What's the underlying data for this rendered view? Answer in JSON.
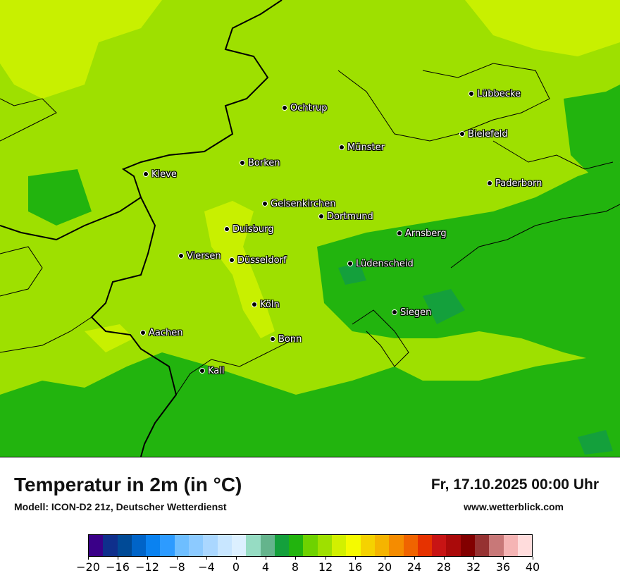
{
  "title": "Temperatur in 2m (in °C)",
  "subtitle": "Modell: ICON-D2 21z, Deutscher Wetterdienst",
  "datetime": "Fr, 17.10.2025 00:00 Uhr",
  "website": "www.wetterblick.com",
  "map_colors": {
    "band_10_12": "#9ee000",
    "band_12_14": "#c8f000",
    "band_8_10": "#22b40e",
    "band_6_8": "#14a03c",
    "border": "#000000"
  },
  "cities": [
    {
      "name": "Lübbecke"
    },
    {
      "name": "Ochtrup"
    },
    {
      "name": "Bielefeld"
    },
    {
      "name": "Münster"
    },
    {
      "name": "Borken"
    },
    {
      "name": "Kleve"
    },
    {
      "name": "Paderborn"
    },
    {
      "name": "Gelsenkirchen"
    },
    {
      "name": "Dortmund"
    },
    {
      "name": "Duisburg"
    },
    {
      "name": "Arnsberg"
    },
    {
      "name": "Viersen"
    },
    {
      "name": "Düsseldorf"
    },
    {
      "name": "Lüdenscheid"
    },
    {
      "name": "Köln"
    },
    {
      "name": "Siegen"
    },
    {
      "name": "Aachen"
    },
    {
      "name": "Bonn"
    },
    {
      "name": "Kall"
    }
  ],
  "legend": {
    "colors": [
      "#3a0088",
      "#0f2f8c",
      "#004a96",
      "#0064c8",
      "#0a82f0",
      "#2d9bff",
      "#6ebeff",
      "#8ccaff",
      "#aad7ff",
      "#c8e6ff",
      "#dcf0ff",
      "#96dcc3",
      "#64b48c",
      "#14a03c",
      "#22b40e",
      "#6ed200",
      "#9ee000",
      "#d2f000",
      "#f5fa00",
      "#f5d200",
      "#f5b400",
      "#f58c00",
      "#f06400",
      "#e63200",
      "#c81414",
      "#aa0a0a",
      "#820000",
      "#963232",
      "#c87878",
      "#f5b4b4",
      "#ffdcdc"
    ],
    "ticks": [
      "−20",
      "−16",
      "−12",
      "−8",
      "−4",
      "0",
      "4",
      "8",
      "12",
      "16",
      "20",
      "24",
      "28",
      "32",
      "36",
      "40"
    ]
  }
}
